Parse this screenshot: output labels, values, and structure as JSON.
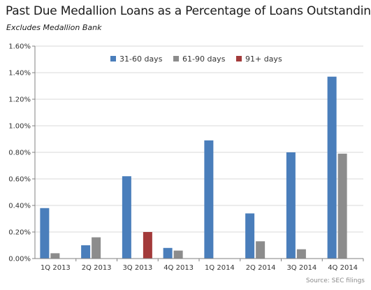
{
  "chart_data": {
    "type": "bar",
    "title": "Past Due Medallion Loans as a Percentage of Loans Outstanding",
    "subtitle": "Excludes Medallion Bank",
    "categories": [
      "1Q 2013",
      "2Q 2013",
      "3Q 2013",
      "4Q 2013",
      "1Q 2014",
      "2Q 2014",
      "3Q 2014",
      "4Q 2014"
    ],
    "series": [
      {
        "name": "31-60 days",
        "color": "#4a7ebb",
        "values": [
          0.38,
          0.1,
          0.62,
          0.08,
          0.89,
          0.34,
          0.8,
          1.37
        ]
      },
      {
        "name": "61-90 days",
        "color": "#8c8c8c",
        "values": [
          0.04,
          0.16,
          0,
          0.06,
          0,
          0.13,
          0.07,
          0.79
        ]
      },
      {
        "name": "91+ days",
        "color": "#a33a3a",
        "values": [
          0,
          0,
          0.2,
          0,
          0,
          0,
          0,
          0
        ]
      }
    ],
    "ylim": [
      0,
      1.6
    ],
    "yticks": [
      "0.00%",
      "0.20%",
      "0.40%",
      "0.60%",
      "0.80%",
      "1.00%",
      "1.20%",
      "1.40%",
      "1.60%"
    ],
    "grid": "horizontal",
    "legend_position": "top-center",
    "source": "Source:  SEC filings"
  }
}
